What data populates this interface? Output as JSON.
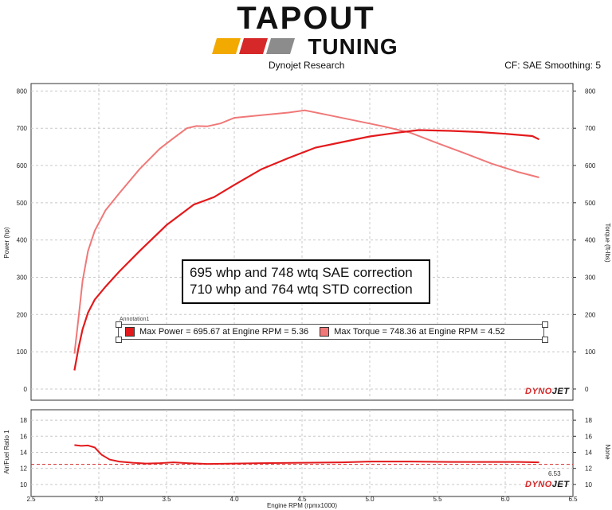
{
  "logo": {
    "line1": "TAPOUT",
    "line2": "TUNING",
    "stripe_colors": [
      "#f2a900",
      "#d62828",
      "#8c8c8c",
      "#8c8c8c"
    ]
  },
  "header": {
    "source": "Dynojet Research",
    "settings": "CF: SAE Smoothing: 5"
  },
  "callout": {
    "line1": "695 whp and 748 wtq SAE correction",
    "line2": "710 whp and 764 wtq STD correction"
  },
  "annotation": {
    "title": "Annotation1",
    "power": "Max Power = 695.67 at Engine RPM = 5.36",
    "torque": "Max Torque = 748.36 at Engine RPM = 4.52"
  },
  "brand_mark": {
    "left": "DYNO",
    "right": "JET"
  },
  "cursor_value": "6.53",
  "colors": {
    "power": "#e31a1c",
    "torque": "#f07878",
    "afr": "#e31a1c",
    "ref": "#d62828"
  },
  "chart_data": [
    {
      "type": "line",
      "xlabel": "Engine RPM (rpmx1000)",
      "ylabel": "Power (hp)",
      "y2label": "Torque (ft-lbs)",
      "xlim": [
        2.5,
        6.5
      ],
      "ylim": [
        -30,
        820
      ],
      "x_ticks": [
        "2.5",
        "3.0",
        "3.5",
        "4.0",
        "4.5",
        "5.0",
        "5.5",
        "6.0",
        "6.5"
      ],
      "y_ticks": [
        "0",
        "100",
        "200",
        "300",
        "400",
        "500",
        "600",
        "700",
        "800"
      ],
      "grid": true,
      "series": [
        {
          "key": "power",
          "x": [
            2.82,
            2.85,
            2.88,
            2.92,
            2.97,
            3.05,
            3.15,
            3.3,
            3.5,
            3.7,
            3.85,
            4.0,
            4.2,
            4.4,
            4.6,
            4.8,
            5.0,
            5.2,
            5.36,
            5.6,
            5.8,
            6.0,
            6.2,
            6.25
          ],
          "values": [
            50,
            110,
            160,
            205,
            240,
            275,
            315,
            370,
            440,
            495,
            515,
            548,
            590,
            620,
            648,
            663,
            678,
            688,
            695,
            693,
            690,
            685,
            679,
            670
          ]
        },
        {
          "key": "torque",
          "x": [
            2.82,
            2.85,
            2.88,
            2.92,
            2.97,
            3.05,
            3.15,
            3.3,
            3.45,
            3.55,
            3.65,
            3.72,
            3.8,
            3.9,
            4.0,
            4.2,
            4.4,
            4.52,
            4.7,
            4.9,
            5.1,
            5.3,
            5.5,
            5.7,
            5.9,
            6.1,
            6.25
          ],
          "values": [
            95,
            190,
            290,
            370,
            425,
            480,
            525,
            590,
            645,
            673,
            700,
            706,
            705,
            713,
            728,
            735,
            742,
            748,
            735,
            720,
            705,
            688,
            660,
            633,
            605,
            582,
            568
          ]
        }
      ]
    },
    {
      "type": "line",
      "xlabel": "Engine RPM (rpmx1000)",
      "ylabel": "Air/Fuel Ratio 1",
      "y2label": "None",
      "xlim": [
        2.5,
        6.5
      ],
      "ylim": [
        8.5,
        19.3
      ],
      "y_ticks": [
        "10",
        "12",
        "14",
        "16",
        "18"
      ],
      "reference_line": 12.5,
      "series": [
        {
          "key": "afr",
          "x": [
            2.82,
            2.87,
            2.92,
            2.97,
            3.02,
            3.08,
            3.15,
            3.25,
            3.35,
            3.45,
            3.55,
            3.65,
            3.8,
            4.0,
            4.2,
            4.5,
            4.8,
            5.0,
            5.3,
            5.6,
            5.9,
            6.1,
            6.25
          ],
          "values": [
            14.9,
            14.8,
            14.85,
            14.6,
            13.7,
            13.1,
            12.85,
            12.7,
            12.6,
            12.65,
            12.75,
            12.65,
            12.55,
            12.6,
            12.65,
            12.7,
            12.75,
            12.85,
            12.85,
            12.8,
            12.8,
            12.8,
            12.75
          ]
        }
      ]
    }
  ]
}
